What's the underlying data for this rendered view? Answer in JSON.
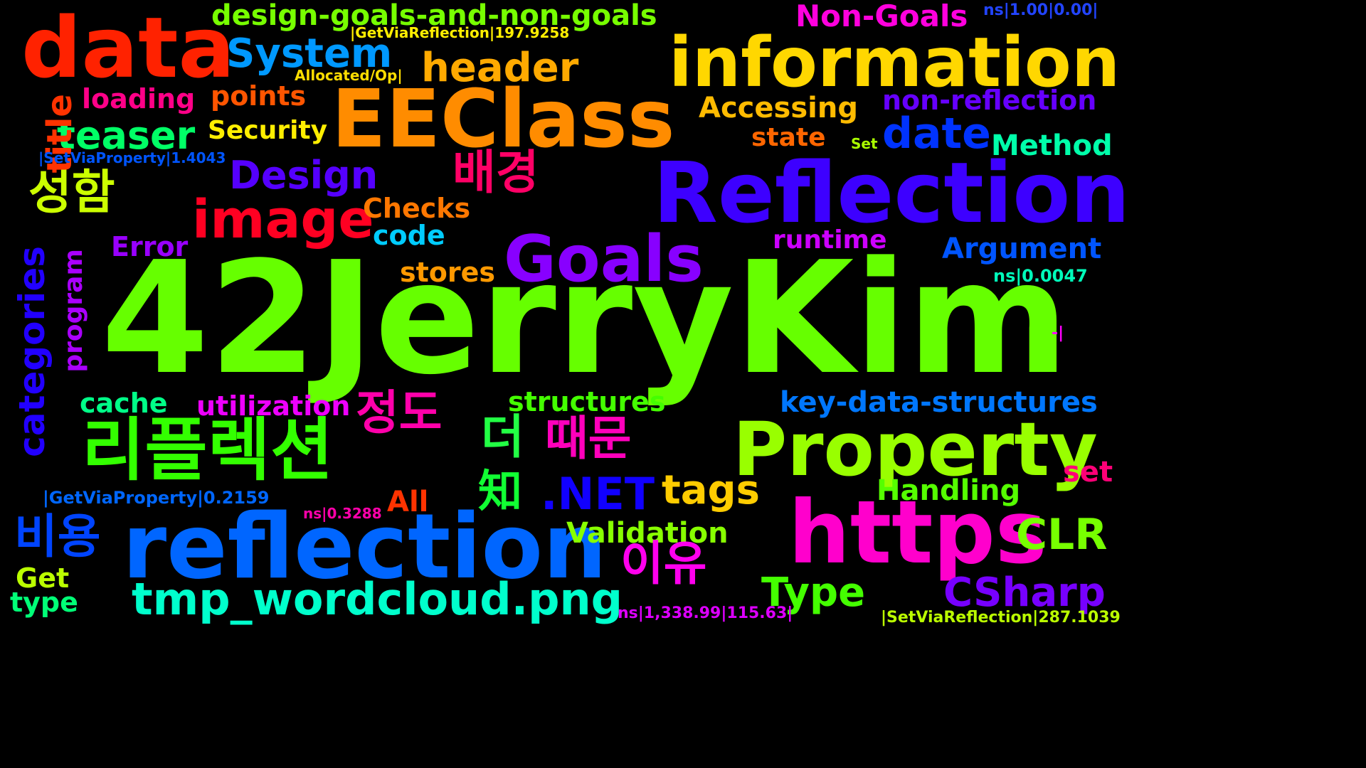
{
  "background_color": "#000000",
  "words": [
    {
      "text": "42JerryKim",
      "color": "#66ff00"
    },
    {
      "text": "Reflection",
      "color": "#3d00ff"
    },
    {
      "text": "EEClass",
      "color": "#ff8c00"
    },
    {
      "text": "information",
      "color": "#ffd700"
    },
    {
      "text": "data",
      "color": "#ff2200"
    },
    {
      "text": "reflection",
      "color": "#0066ff"
    },
    {
      "text": "https",
      "color": "#ff00cc"
    },
    {
      "text": "Property",
      "color": "#99ff00"
    },
    {
      "text": "Goals",
      "color": "#8800ff"
    },
    {
      "text": "리플렉션",
      "color": "#33ff00"
    },
    {
      "text": "image",
      "color": "#ff0022"
    },
    {
      "text": "tmp_wordcloud.png",
      "color": "#00ffcc"
    },
    {
      "text": "System",
      "color": "#0099ff"
    },
    {
      "text": "header",
      "color": "#ffaa00"
    },
    {
      "text": "Design",
      "color": "#5500ff"
    },
    {
      "text": "teaser",
      "color": "#00ff66"
    },
    {
      "text": "design-goals-and-non-goals",
      "color": "#77ff00"
    },
    {
      "text": "Non-Goals",
      "color": "#ff00dd"
    },
    {
      "text": "non-reflection",
      "color": "#6600ff"
    },
    {
      "text": "date",
      "color": "#0033ff"
    },
    {
      "text": "Accessing",
      "color": "#ffbb00"
    },
    {
      "text": "Method",
      "color": "#00ffaa"
    },
    {
      "text": "state",
      "color": "#ff6600"
    },
    {
      "text": "배경",
      "color": "#ff0066"
    },
    {
      "text": "성함",
      "color": "#ccff00"
    },
    {
      "text": "title",
      "color": "#ff3300"
    },
    {
      "text": "categories",
      "color": "#2200ff"
    },
    {
      "text": "program",
      "color": "#aa00ff"
    },
    {
      "text": "loading",
      "color": "#ff0088"
    },
    {
      "text": "points",
      "color": "#ff5500"
    },
    {
      "text": "Security",
      "color": "#ffee00"
    },
    {
      "text": "Checks",
      "color": "#ff7700"
    },
    {
      "text": "code",
      "color": "#00ccff"
    },
    {
      "text": "Error",
      "color": "#9900ff"
    },
    {
      "text": "stores",
      "color": "#ff9900"
    },
    {
      "text": "runtime",
      "color": "#cc00ff"
    },
    {
      "text": "Argument",
      "color": "#0055ff"
    },
    {
      "text": "cache",
      "color": "#00ff88"
    },
    {
      "text": "utilization",
      "color": "#ee00ff"
    },
    {
      "text": "정도",
      "color": "#ff00aa"
    },
    {
      "text": "structures",
      "color": "#44ff00"
    },
    {
      "text": "key-data-structures",
      "color": "#0077ff"
    },
    {
      "text": "더",
      "color": "#22ff44"
    },
    {
      "text": "때문",
      "color": "#ff00bb"
    },
    {
      "text": "知",
      "color": "#11ff33"
    },
    {
      "text": ".NET",
      "color": "#1100ff"
    },
    {
      "text": "tags",
      "color": "#ffcc00"
    },
    {
      "text": "Handling",
      "color": "#55ff00"
    },
    {
      "text": "set",
      "color": "#ff0077"
    },
    {
      "text": "All",
      "color": "#ff3300"
    },
    {
      "text": "Validation",
      "color": "#88ff00"
    },
    {
      "text": "CLR",
      "color": "#77ff00"
    },
    {
      "text": "비용",
      "color": "#0044ff"
    },
    {
      "text": "이유",
      "color": "#ff00ee"
    },
    {
      "text": "Type",
      "color": "#44ff00"
    },
    {
      "text": "CSharp",
      "color": "#7700ff"
    },
    {
      "text": "Get",
      "color": "#bbff00"
    },
    {
      "text": "type",
      "color": "#00ff77"
    },
    {
      "text": "|GetViaReflection|197.9258",
      "color": "#ffee00"
    },
    {
      "text": "Allocated/Op|",
      "color": "#ffdd00"
    },
    {
      "text": "ns|1.00|0.00|",
      "color": "#2244ff"
    },
    {
      "text": "|SetViaProperty|1.4043",
      "color": "#0055ff"
    },
    {
      "text": "Set",
      "color": "#aaff00"
    },
    {
      "text": "ns|0.0047",
      "color": "#00ffbb"
    },
    {
      "text": "-|",
      "color": "#ff00ff"
    },
    {
      "text": "|GetViaProperty|0.2159",
      "color": "#0066ff"
    },
    {
      "text": "ns|0.3288",
      "color": "#ff00aa"
    },
    {
      "text": "ns|1,338.99|115.63|",
      "color": "#dd00ff"
    },
    {
      "text": "|SetViaReflection|287.1039",
      "color": "#bbff00"
    }
  ]
}
